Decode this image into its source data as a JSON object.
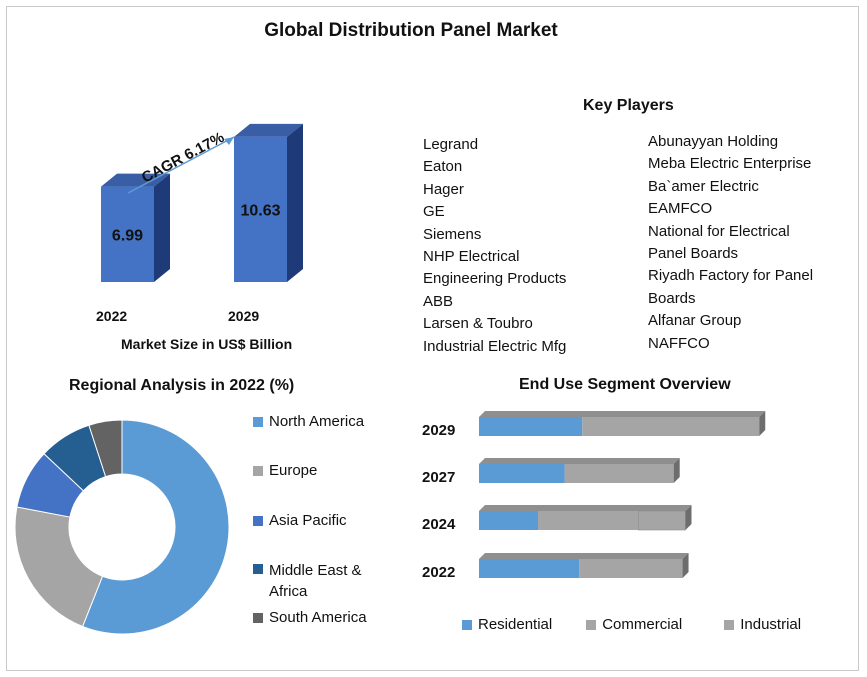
{
  "title": "Global Distribution Panel Market",
  "market_chart": {
    "caption": "Market Size in US$ Billion",
    "cagr_label": "CAGR 6.17%",
    "bars": [
      {
        "year": "2022",
        "value": 6.99,
        "label": "6.99"
      },
      {
        "year": "2029",
        "value": 10.63,
        "label": "10.63"
      }
    ]
  },
  "key_players": {
    "heading": "Key Players",
    "col1": [
      "Legrand",
      "Eaton",
      "Hager",
      "GE",
      "Siemens",
      "NHP Electrical",
      "Engineering  Products",
      "ABB",
      "Larsen & Toubro",
      "Industrial  Electric Mfg"
    ],
    "col2": [
      "Abunayyan  Holding",
      "Meba Electric Enterprise",
      "Ba`amer Electric",
      "EAMFCO",
      "National for Electrical",
      "Panel Boards",
      "Riyadh  Factory for Panel",
      "Boards",
      "Alfanar Group",
      "NAFFCO"
    ]
  },
  "chart_data": [
    {
      "type": "bar",
      "title": "Market Size in US$ Billion",
      "categories": [
        "2022",
        "2029"
      ],
      "values": [
        6.99,
        10.63
      ],
      "annotation": "CAGR 6.17%",
      "ylim": [
        0,
        12
      ]
    },
    {
      "type": "pie",
      "title": "Regional Analysis in 2022 (%)",
      "labels": [
        "North America",
        "Europe",
        "Asia Pacific",
        "Middle East & Africa",
        "South America"
      ],
      "values": [
        56,
        22,
        9,
        8,
        5
      ],
      "colors": [
        "#5b9bd5",
        "#a5a5a5",
        "#4472c4",
        "#255e91",
        "#636363"
      ]
    },
    {
      "type": "bar",
      "orientation": "horizontal",
      "stacked": true,
      "title": "End Use Segment Overview",
      "categories": [
        "2029",
        "2027",
        "2024",
        "2022"
      ],
      "series": [
        {
          "name": "Residential",
          "values": [
            35,
            29,
            20,
            34
          ],
          "color": "#5b9bd5"
        },
        {
          "name": "Commercial",
          "values": [
            60,
            37,
            34,
            35
          ],
          "color": "#a5a5a5"
        },
        {
          "name": "Industrial",
          "values": [
            0,
            0,
            16,
            0
          ],
          "color": "#a5a5a5"
        }
      ],
      "xlim": [
        0,
        100
      ]
    }
  ],
  "regional": {
    "title": "Regional Analysis in 2022 (%)",
    "legend": [
      "North America",
      "Europe",
      "Asia Pacific",
      "Middle East &",
      "Africa",
      "South America"
    ]
  },
  "enduse": {
    "title": "End Use Segment Overview",
    "legend": [
      "Residential",
      "Commercial",
      "Industrial"
    ]
  }
}
